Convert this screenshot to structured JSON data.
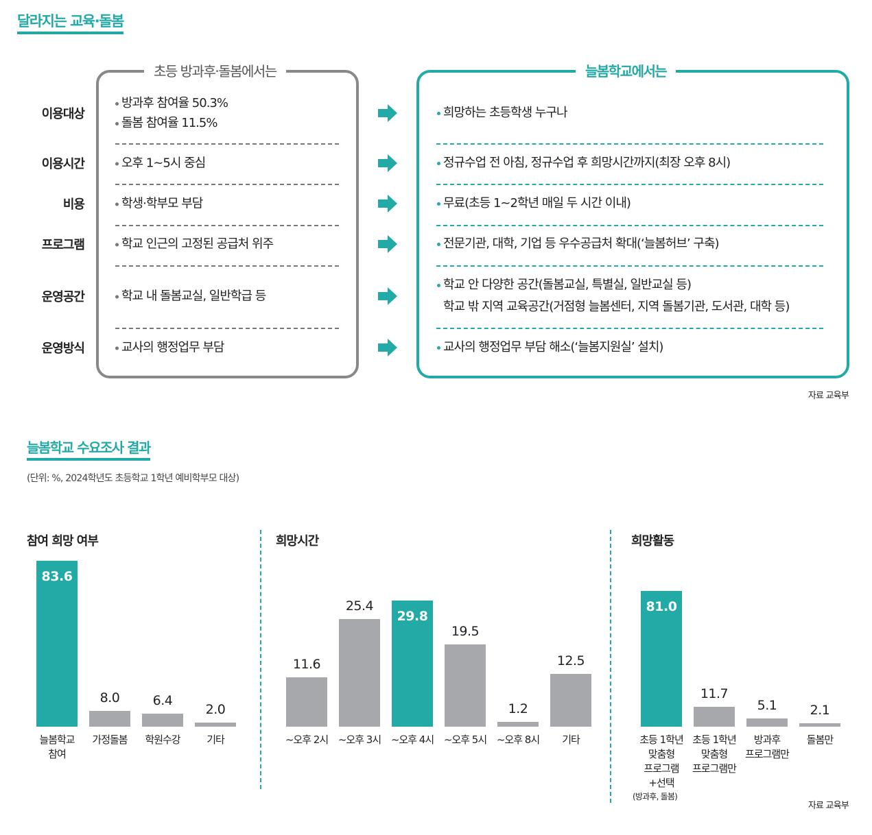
{
  "comparison": {
    "title": "달라지는 교육·돌봄",
    "left_header": "초등 방과후·돌봄에서는",
    "right_header": "늘봄학교에서는",
    "rows": [
      {
        "label": "이용대상",
        "before": [
          "방과후 참여율 50.3%",
          "돌봄 참여율 11.5%"
        ],
        "after": [
          "희망하는 초등학생 누구나"
        ]
      },
      {
        "label": "이용시간",
        "before": [
          "오후 1~5시 중심"
        ],
        "after": [
          "정규수업 전 아침, 정규수업 후 희망시간까지(최장 오후 8시)"
        ]
      },
      {
        "label": "비용",
        "before": [
          "학생·학부모 부담"
        ],
        "after": [
          "무료(초등 1~2학년 매일 두 시간 이내)"
        ]
      },
      {
        "label": "프로그램",
        "before": [
          "학교 인근의 고정된 공급처 위주"
        ],
        "after": [
          "전문기관, 대학, 기업 등 우수공급처 확대(‘늘봄허브’ 구축)"
        ]
      },
      {
        "label": "운영공간",
        "before": [
          "학교 내 돌봄교실, 일반학급 등"
        ],
        "after": [
          "학교 안 다양한 공간(돌봄교실, 특별실, 일반교실 등)",
          "학교 밖 지역 교육공간(거점형 늘봄센터, 지역 돌봄기관, 도서관, 대학 등)"
        ]
      },
      {
        "label": "운영방식",
        "before": [
          "교사의 행정업무 부담"
        ],
        "after": [
          "교사의 행정업무 부담 해소(‘늘봄지원실’ 설치)"
        ]
      }
    ],
    "source": "자료 교육부"
  },
  "survey": {
    "title": "늘봄학교 수요조사 결과",
    "unit_note": "(단위: %, 2024학년도 초등학교 1학년 예비학부모 대상)",
    "source": "자료 교육부"
  },
  "colors": {
    "accent": "#22aaa6",
    "bar_gray": "#a7a8ab"
  },
  "chart_data": [
    {
      "type": "bar",
      "title": "참여 희망 여부",
      "categories": [
        "늘봄학교\n참여",
        "가정돌봄",
        "학원수강",
        "기타"
      ],
      "values": [
        83.6,
        8.0,
        6.4,
        2.0
      ],
      "highlight": 0,
      "labels": [
        "83.6",
        "8.0",
        "6.4",
        "2.0"
      ]
    },
    {
      "type": "bar",
      "title": "희망시간",
      "categories": [
        "~오후 2시",
        "~오후 3시",
        "~오후 4시",
        "~오후 5시",
        "~오후 8시",
        "기타"
      ],
      "values": [
        11.6,
        25.4,
        29.8,
        19.5,
        1.2,
        12.5
      ],
      "highlight": 2,
      "labels": [
        "11.6",
        "25.4",
        "29.8",
        "19.5",
        "1.2",
        "12.5"
      ]
    },
    {
      "type": "bar",
      "title": "희망활동",
      "categories": [
        "초등 1학년\n맞춤형\n프로그램\n+선택",
        "초등 1학년\n맞춤형\n프로그램만",
        "방과후\n프로그램만",
        "돌봄만"
      ],
      "category_sub": "(방과후, 돌봄)",
      "values": [
        81.0,
        11.7,
        5.1,
        2.1
      ],
      "highlight": 0,
      "labels": [
        "81.0",
        "11.7",
        "5.1",
        "2.1"
      ]
    }
  ]
}
